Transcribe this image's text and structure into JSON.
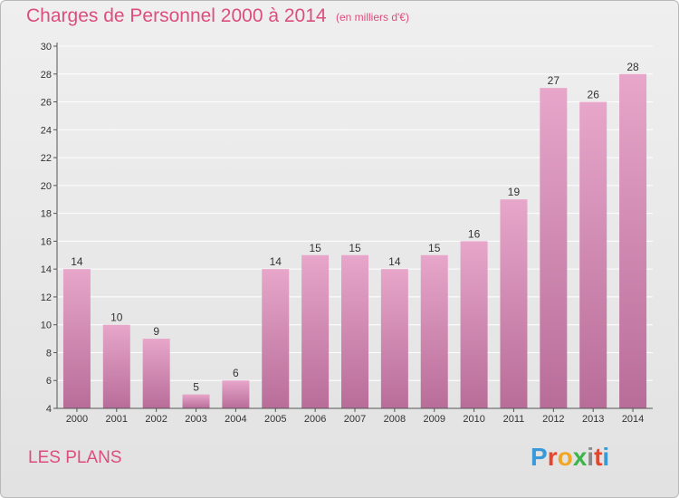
{
  "header": {
    "title": "Charges de Personnel 2000 à 2014",
    "subtitle": "(en milliers d'€)"
  },
  "commune": "LES PLANS",
  "brand": {
    "letters": [
      "P",
      "r",
      "o",
      "x",
      "i",
      "t",
      "i"
    ],
    "colors": [
      "#3a9ad9",
      "#e8442c",
      "#f1a722",
      "#3db54a",
      "#8a8a8a",
      "#e8442c",
      "#3a9ad9"
    ]
  },
  "colors": {
    "bar_top": "#e7a6ca",
    "bar_bottom": "#b86d99",
    "axis": "#555555",
    "grid": "#ffffff"
  },
  "chart_data": {
    "type": "bar",
    "categories": [
      "2000",
      "2001",
      "2002",
      "2003",
      "2004",
      "2005",
      "2006",
      "2007",
      "2008",
      "2009",
      "2010",
      "2011",
      "2012",
      "2013",
      "2014"
    ],
    "values": [
      14,
      10,
      9,
      5,
      6,
      14,
      15,
      15,
      14,
      15,
      16,
      19,
      27,
      26,
      28
    ],
    "title": "Charges de Personnel 2000 à 2014",
    "subtitle": "(en milliers d'€)",
    "xlabel": "",
    "ylabel": "",
    "ylim": [
      4,
      30
    ],
    "yticks": [
      4,
      6,
      8,
      10,
      12,
      14,
      16,
      18,
      20,
      22,
      24,
      26,
      28,
      30
    ],
    "grid": true,
    "legend": "none"
  }
}
